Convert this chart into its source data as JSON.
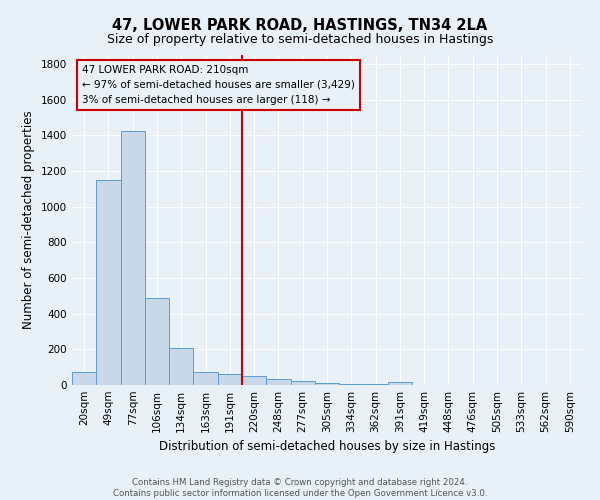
{
  "title": "47, LOWER PARK ROAD, HASTINGS, TN34 2LA",
  "subtitle": "Size of property relative to semi-detached houses in Hastings",
  "xlabel": "Distribution of semi-detached houses by size in Hastings",
  "ylabel": "Number of semi-detached properties",
  "footer_line1": "Contains HM Land Registry data © Crown copyright and database right 2024.",
  "footer_line2": "Contains public sector information licensed under the Open Government Licence v3.0.",
  "bin_labels": [
    "20sqm",
    "49sqm",
    "77sqm",
    "106sqm",
    "134sqm",
    "163sqm",
    "191sqm",
    "220sqm",
    "248sqm",
    "277sqm",
    "305sqm",
    "334sqm",
    "362sqm",
    "391sqm",
    "419sqm",
    "448sqm",
    "476sqm",
    "505sqm",
    "533sqm",
    "562sqm",
    "590sqm"
  ],
  "bar_values": [
    75,
    1150,
    1425,
    490,
    210,
    75,
    60,
    50,
    35,
    20,
    10,
    5,
    5,
    15,
    0,
    0,
    0,
    0,
    0,
    0,
    0
  ],
  "bar_color": "#c8d8e8",
  "bar_edge_color": "#5b9bd5",
  "vline_x_index": 7,
  "vline_color": "#cc0000",
  "annotation_text": "47 LOWER PARK ROAD: 210sqm\n← 97% of semi-detached houses are smaller (3,429)\n3% of semi-detached houses are larger (118) →",
  "annotation_box_edge": "#cc0000",
  "ylim": [
    0,
    1850
  ],
  "yticks": [
    0,
    200,
    400,
    600,
    800,
    1000,
    1200,
    1400,
    1600,
    1800
  ],
  "bg_color": "#e8f0f8",
  "grid_color": "#ffffff",
  "title_fontsize": 10.5,
  "subtitle_fontsize": 9,
  "axis_label_fontsize": 8.5,
  "tick_fontsize": 7.5,
  "annotation_fontsize": 7.5,
  "footer_fontsize": 6.2
}
